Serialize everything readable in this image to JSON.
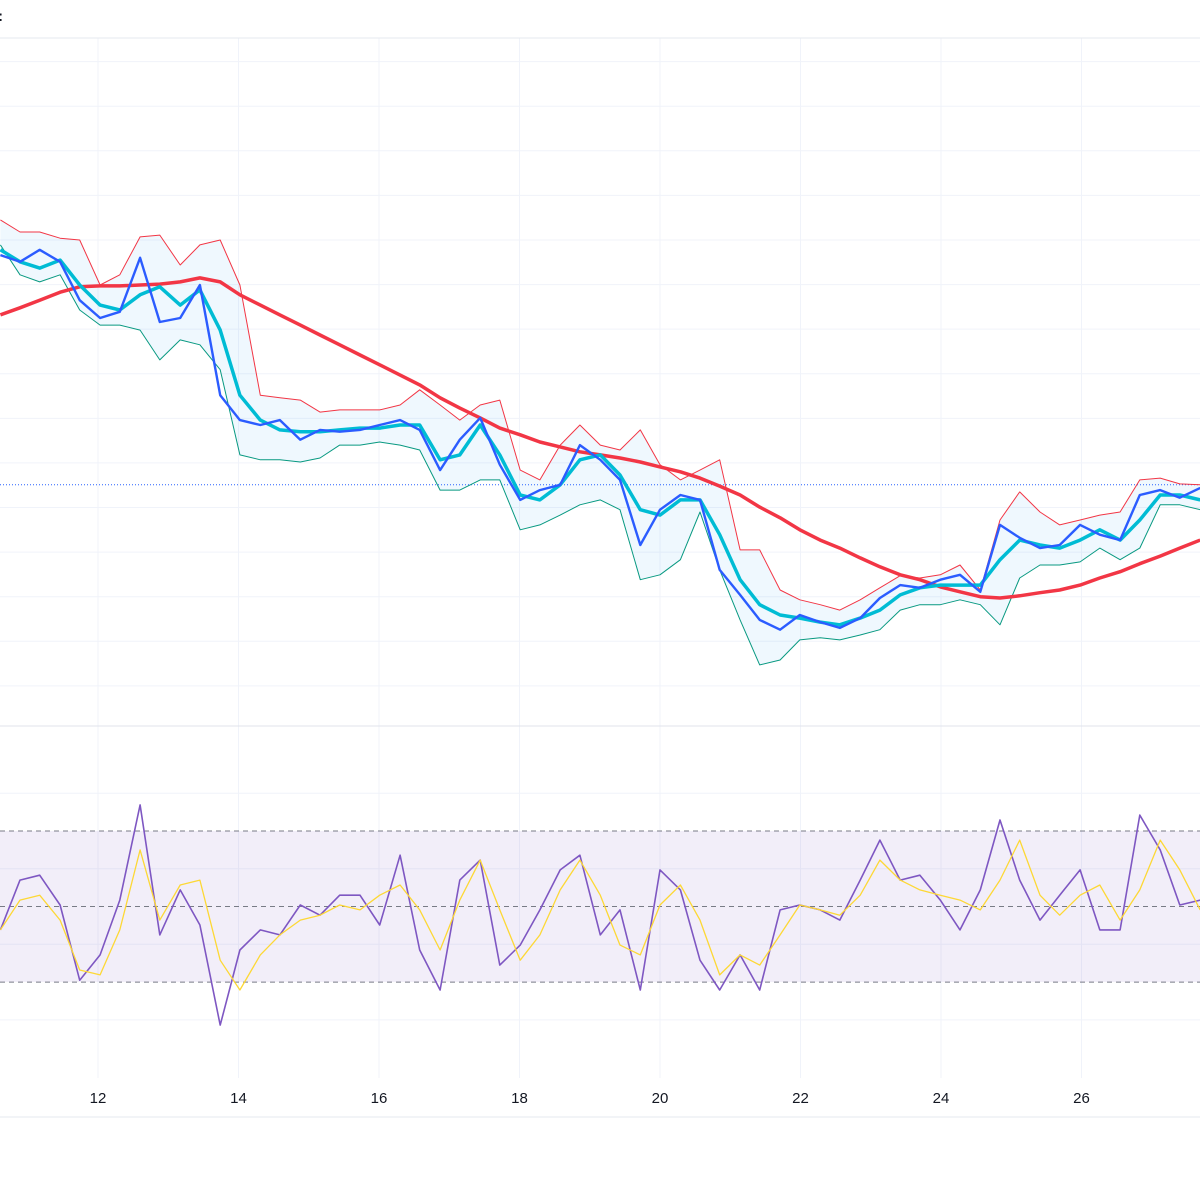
{
  "legend_fragment": ":",
  "colors": {
    "price": "#2b5cff",
    "basis_ma": "#00bcd4",
    "long_ma": "#f23645",
    "upper_band": "#f23645",
    "lower_band": "#089981",
    "band_fill": "#2196f3",
    "last_price_line": "#2962ff",
    "rsi": "#7e57c2",
    "rsi_ma": "#fdd835",
    "rsi_band_fill": "#7e57c2",
    "rsi_levels": "#787b86",
    "grid": "#f0f3fa"
  },
  "chart_data": [
    {
      "type": "line",
      "pane": "price",
      "title": "",
      "xlabel": "",
      "ylabel": "",
      "xlim": [
        10.605,
        27.687
      ],
      "ylim": [
        -0.9,
        14.53
      ],
      "x_ticks": [
        "12",
        "14",
        "16",
        "18",
        "20",
        "22",
        "24",
        "26"
      ],
      "x_tick_values": [
        12,
        14,
        16,
        18,
        20,
        22,
        24,
        26
      ],
      "grid": true,
      "y_axis_labels_visible": false,
      "last_price_line": 4.51,
      "x": [
        10.61,
        10.89,
        11.17,
        11.46,
        11.74,
        12.03,
        12.31,
        12.6,
        12.88,
        13.17,
        13.45,
        13.74,
        14.02,
        14.31,
        14.59,
        14.88,
        15.16,
        15.44,
        15.73,
        16.01,
        16.3,
        16.58,
        16.87,
        17.15,
        17.44,
        17.72,
        18.01,
        18.29,
        18.58,
        18.86,
        19.15,
        19.43,
        19.72,
        20.0,
        20.29,
        20.57,
        20.85,
        21.14,
        21.42,
        21.71,
        21.99,
        22.28,
        22.56,
        22.85,
        23.13,
        23.42,
        23.7,
        23.99,
        24.27,
        24.56,
        24.84,
        25.12,
        25.41,
        25.69,
        25.98,
        26.26,
        26.55,
        26.83,
        27.12,
        27.4,
        27.69
      ],
      "series": [
        {
          "key": "upper_band",
          "values": [
            10.45,
            10.18,
            10.18,
            10.04,
            10.0,
            8.99,
            9.22,
            10.07,
            10.11,
            9.44,
            9.89,
            10.0,
            8.99,
            6.52,
            6.46,
            6.41,
            6.14,
            6.19,
            6.19,
            6.19,
            6.3,
            6.64,
            6.3,
            5.96,
            6.3,
            6.41,
            4.84,
            4.62,
            5.4,
            5.85,
            5.4,
            5.29,
            5.74,
            4.96,
            4.62,
            4.84,
            5.07,
            3.05,
            3.05,
            2.15,
            1.93,
            1.82,
            1.7,
            1.93,
            2.2,
            2.47,
            2.42,
            2.49,
            2.71,
            2.15,
            3.72,
            4.35,
            3.9,
            3.61,
            3.72,
            3.83,
            3.9,
            4.62,
            4.66,
            4.53,
            4.51
          ]
        },
        {
          "key": "lower_band",
          "values": [
            9.89,
            9.22,
            9.06,
            9.22,
            8.43,
            8.09,
            8.09,
            7.98,
            7.31,
            7.76,
            7.65,
            7.09,
            5.18,
            5.07,
            5.07,
            5.02,
            5.11,
            5.4,
            5.4,
            5.47,
            5.4,
            5.29,
            4.39,
            4.39,
            4.62,
            4.62,
            3.5,
            3.61,
            3.83,
            4.06,
            4.17,
            3.95,
            2.38,
            2.49,
            2.83,
            3.9,
            2.6,
            1.48,
            0.47,
            0.58,
            1.03,
            1.08,
            1.03,
            1.14,
            1.26,
            1.7,
            1.82,
            1.82,
            1.93,
            1.82,
            1.37,
            2.42,
            2.71,
            2.71,
            2.78,
            3.09,
            2.83,
            3.09,
            4.06,
            4.06,
            3.95
          ]
        },
        {
          "key": "long_ma",
          "values": [
            8.32,
            8.48,
            8.65,
            8.83,
            8.95,
            8.97,
            8.97,
            8.99,
            9.01,
            9.06,
            9.15,
            9.06,
            8.77,
            8.54,
            8.32,
            8.09,
            7.87,
            7.65,
            7.42,
            7.2,
            6.97,
            6.75,
            6.46,
            6.23,
            6.01,
            5.78,
            5.63,
            5.47,
            5.36,
            5.25,
            5.18,
            5.11,
            5.02,
            4.91,
            4.8,
            4.66,
            4.48,
            4.28,
            4.01,
            3.77,
            3.5,
            3.27,
            3.09,
            2.87,
            2.67,
            2.49,
            2.38,
            2.22,
            2.11,
            2.0,
            1.97,
            2.02,
            2.09,
            2.15,
            2.26,
            2.42,
            2.56,
            2.74,
            2.91,
            3.09,
            3.27
          ]
        },
        {
          "key": "basis_ma",
          "values": [
            9.78,
            9.51,
            9.37,
            9.55,
            8.99,
            8.54,
            8.43,
            8.77,
            8.95,
            8.54,
            8.88,
            7.98,
            6.52,
            5.96,
            5.74,
            5.7,
            5.7,
            5.74,
            5.78,
            5.78,
            5.85,
            5.85,
            5.07,
            5.18,
            5.85,
            5.18,
            4.28,
            4.17,
            4.51,
            5.07,
            5.18,
            4.73,
            3.95,
            3.83,
            4.17,
            4.17,
            3.39,
            2.38,
            1.82,
            1.59,
            1.52,
            1.43,
            1.37,
            1.52,
            1.7,
            2.04,
            2.2,
            2.26,
            2.26,
            2.26,
            2.83,
            3.27,
            3.16,
            3.09,
            3.27,
            3.5,
            3.27,
            3.72,
            4.28,
            4.28,
            4.17
          ]
        },
        {
          "key": "price",
          "values": [
            9.66,
            9.51,
            9.78,
            9.51,
            8.65,
            8.25,
            8.39,
            9.6,
            8.16,
            8.25,
            8.99,
            6.52,
            5.96,
            5.85,
            5.96,
            5.52,
            5.74,
            5.7,
            5.74,
            5.85,
            5.96,
            5.74,
            4.84,
            5.52,
            6.01,
            4.96,
            4.17,
            4.39,
            4.51,
            5.4,
            5.07,
            4.62,
            3.16,
            3.95,
            4.28,
            4.17,
            2.6,
            2.04,
            1.48,
            1.26,
            1.59,
            1.43,
            1.3,
            1.52,
            1.97,
            2.26,
            2.2,
            2.38,
            2.49,
            2.11,
            3.61,
            3.32,
            3.09,
            3.16,
            3.61,
            3.39,
            3.27,
            4.28,
            4.39,
            4.22,
            4.44
          ]
        }
      ]
    },
    {
      "type": "line",
      "pane": "rsi",
      "title": "",
      "xlabel": "",
      "ylabel": "",
      "xlim": [
        10.605,
        27.687
      ],
      "ylim": [
        4.6,
        97.8
      ],
      "levels": [
        70,
        50,
        30
      ],
      "grid_values": [
        20,
        40,
        60,
        80
      ],
      "grid": true,
      "y_axis_labels_visible": false,
      "x": [
        10.61,
        10.89,
        11.17,
        11.46,
        11.74,
        12.03,
        12.31,
        12.6,
        12.88,
        13.17,
        13.45,
        13.74,
        14.02,
        14.31,
        14.59,
        14.88,
        15.16,
        15.44,
        15.73,
        16.01,
        16.3,
        16.58,
        16.87,
        17.15,
        17.44,
        17.72,
        18.01,
        18.29,
        18.58,
        18.86,
        19.15,
        19.43,
        19.72,
        20.0,
        20.29,
        20.57,
        20.85,
        21.14,
        21.42,
        21.71,
        21.99,
        22.28,
        22.56,
        22.85,
        23.13,
        23.42,
        23.7,
        23.99,
        24.27,
        24.56,
        24.84,
        25.12,
        25.41,
        25.69,
        25.98,
        26.26,
        26.55,
        26.83,
        27.12,
        27.4,
        27.69
      ],
      "series": [
        {
          "key": "rsi",
          "values": [
            43.8,
            57.0,
            58.3,
            50.4,
            30.5,
            37.2,
            51.7,
            76.9,
            42.5,
            54.4,
            45.1,
            18.6,
            38.5,
            43.8,
            42.5,
            50.4,
            47.7,
            53.0,
            53.0,
            45.1,
            63.6,
            38.5,
            27.9,
            57.0,
            62.3,
            34.5,
            39.8,
            49.1,
            59.7,
            63.6,
            42.5,
            49.1,
            27.9,
            59.7,
            54.4,
            35.8,
            27.9,
            37.2,
            27.9,
            49.1,
            50.4,
            49.1,
            46.4,
            57.0,
            67.6,
            57.0,
            58.3,
            51.7,
            43.8,
            54.4,
            72.9,
            57.0,
            46.4,
            53.0,
            59.7,
            43.8,
            43.8,
            74.2,
            65.0,
            50.4,
            51.7
          ]
        },
        {
          "key": "rsi_ma",
          "values": [
            43.8,
            51.7,
            53.0,
            46.4,
            33.2,
            31.9,
            43.8,
            65.0,
            46.4,
            55.7,
            57.0,
            35.8,
            27.9,
            37.2,
            42.5,
            46.4,
            47.7,
            50.4,
            49.1,
            53.0,
            55.7,
            49.1,
            38.5,
            51.7,
            62.3,
            49.1,
            35.8,
            42.5,
            54.4,
            62.3,
            53.0,
            39.8,
            37.2,
            50.4,
            55.7,
            46.4,
            31.9,
            37.2,
            34.5,
            42.5,
            50.4,
            49.1,
            47.7,
            53.0,
            62.3,
            57.0,
            54.4,
            53.0,
            51.7,
            49.1,
            57.0,
            67.6,
            53.0,
            47.7,
            53.0,
            55.7,
            46.4,
            54.4,
            67.6,
            59.7,
            49.1
          ]
        }
      ]
    }
  ]
}
